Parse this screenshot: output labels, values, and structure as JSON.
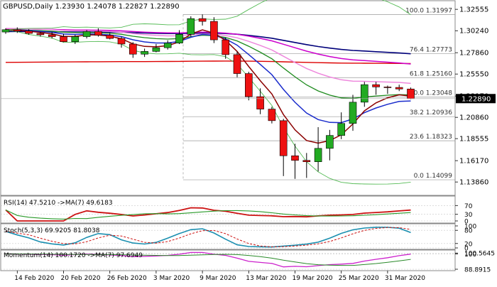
{
  "symbol_header": "GBPUSD,Daily  1.23930 1.24078 1.22827 1.22890",
  "price_axis": {
    "ticks": [
      {
        "label": "1.32555",
        "value": 1.32555
      },
      {
        "label": "1.30240",
        "value": 1.3024
      },
      {
        "label": "1.27860",
        "value": 1.2786
      },
      {
        "label": "1.25550",
        "value": 1.2555
      },
      {
        "label": "1.23170",
        "value": 1.2317
      },
      {
        "label": "1.20860",
        "value": 1.2086
      },
      {
        "label": "1.18555",
        "value": 1.18555
      },
      {
        "label": "1.16170",
        "value": 1.1617
      },
      {
        "label": "1.13860",
        "value": 1.1386
      }
    ],
    "current_price_label": "1.22890",
    "current_price": 1.2289,
    "current_price_color": "#000000"
  },
  "fib_levels": [
    {
      "label": "100.0 1.31997",
      "value": 1.31997
    },
    {
      "label": "76.4 1.27773",
      "value": 1.27773
    },
    {
      "label": "61.8 1.25160",
      "value": 1.2516
    },
    {
      "label": "50.0 1.23048",
      "value": 1.23048
    },
    {
      "label": "38.2 1.20936",
      "value": 1.20936
    },
    {
      "label": "23.6 1.18323",
      "value": 1.18323
    },
    {
      "label": "0.0 1.14099",
      "value": 1.14099
    }
  ],
  "date_axis": [
    "14 Feb 2020",
    "20 Feb 2020",
    "26 Feb 2020",
    "3 Mar 2020",
    "9 Mar 2020",
    "13 Mar 2020",
    "19 Mar 2020",
    "25 Mar 2020",
    "31 Mar 2020"
  ],
  "rsi_panel": {
    "label": "RSI(14) 47.5210  ->MA(7) 49.6183",
    "ticks": [
      {
        "label": "70",
        "value": 70
      },
      {
        "label": "30",
        "value": 30
      },
      {
        "label": "0",
        "value": 0
      }
    ],
    "range": [
      0,
      100
    ]
  },
  "stoch_panel": {
    "label": "Stoch(5,3,3) 69.9205 81.8038",
    "ticks": [
      {
        "label": "100",
        "value": 100
      },
      {
        "label": "80",
        "value": 80
      },
      {
        "label": "20",
        "value": 20
      },
      {
        "label": "0",
        "value": 0
      }
    ],
    "range": [
      0,
      100
    ]
  },
  "momentum_panel": {
    "label": "Momentum(14) 100.1720  ->MA(7) 97.6949",
    "ticks": [
      {
        "label": "100.5645",
        "value": 100.5645
      },
      {
        "label": "100",
        "value": 100
      },
      {
        "label": "88.8915",
        "value": 88.8915
      }
    ],
    "range": [
      88.8915,
      101.2
    ]
  },
  "colors": {
    "bull": "#22aa22",
    "bear": "#ee1111",
    "wick": "#000000",
    "ma_darkred": "#8b0000",
    "ma_blue": "#1a2ccc",
    "ma_green": "#1e8b1e",
    "ma_navy": "#00007a",
    "ma_magenta": "#cc00cc",
    "ma_red": "#dd0000",
    "ma_pink": "#ee88dd",
    "bb": "#55bb55",
    "fib": "#9a9a9a",
    "grid": "#c8c8c8"
  },
  "chart_data": {
    "type": "candlestick",
    "title": "GBPUSD,Daily",
    "ylim": [
      1.1295,
      1.3295
    ],
    "x": [
      "2020-02-13",
      "2020-02-14",
      "2020-02-17",
      "2020-02-18",
      "2020-02-19",
      "2020-02-20",
      "2020-02-21",
      "2020-02-24",
      "2020-02-25",
      "2020-02-26",
      "2020-02-27",
      "2020-02-28",
      "2020-03-02",
      "2020-03-03",
      "2020-03-04",
      "2020-03-05",
      "2020-03-06",
      "2020-03-09",
      "2020-03-10",
      "2020-03-11",
      "2020-03-12",
      "2020-03-13",
      "2020-03-16",
      "2020-03-17",
      "2020-03-18",
      "2020-03-19",
      "2020-03-20",
      "2020-03-23",
      "2020-03-24",
      "2020-03-25",
      "2020-03-26",
      "2020-03-27",
      "2020-03-30",
      "2020-03-31",
      "2020-04-01",
      "2020-04-02"
    ],
    "open": [
      1.301,
      1.3035,
      1.302,
      1.2995,
      1.298,
      1.296,
      1.2905,
      1.296,
      1.3015,
      1.2975,
      1.294,
      1.288,
      1.277,
      1.28,
      1.284,
      1.289,
      1.2985,
      1.3155,
      1.3125,
      1.2925,
      1.2765,
      1.256,
      1.231,
      1.2175,
      1.205,
      1.167,
      1.162,
      1.1605,
      1.175,
      1.189,
      1.202,
      1.225,
      1.244,
      1.2415,
      1.241,
      1.2393
    ],
    "high": [
      1.305,
      1.306,
      1.304,
      1.301,
      1.301,
      1.299,
      1.298,
      1.303,
      1.305,
      1.3,
      1.296,
      1.29,
      1.283,
      1.288,
      1.292,
      1.303,
      1.318,
      1.32,
      1.317,
      1.295,
      1.28,
      1.258,
      1.24,
      1.22,
      1.207,
      1.18,
      1.17,
      1.198,
      1.195,
      1.214,
      1.233,
      1.247,
      1.247,
      1.243,
      1.244,
      1.2408
    ],
    "low": [
      1.299,
      1.3,
      1.298,
      1.296,
      1.294,
      1.29,
      1.288,
      1.294,
      1.296,
      1.293,
      1.284,
      1.273,
      1.274,
      1.279,
      1.282,
      1.288,
      1.296,
      1.308,
      1.289,
      1.272,
      1.252,
      1.227,
      1.212,
      1.202,
      1.145,
      1.142,
      1.143,
      1.15,
      1.162,
      1.185,
      1.194,
      1.22,
      1.233,
      1.234,
      1.237,
      1.2283
    ],
    "close": [
      1.3035,
      1.302,
      1.2995,
      1.298,
      1.296,
      1.2905,
      1.296,
      1.3015,
      1.2975,
      1.294,
      1.288,
      1.277,
      1.28,
      1.284,
      1.289,
      1.2985,
      1.3155,
      1.3125,
      1.2925,
      1.2765,
      1.256,
      1.231,
      1.2175,
      1.205,
      1.167,
      1.162,
      1.1605,
      1.175,
      1.189,
      1.202,
      1.225,
      1.244,
      1.2415,
      1.241,
      1.2393,
      1.2289
    ]
  }
}
